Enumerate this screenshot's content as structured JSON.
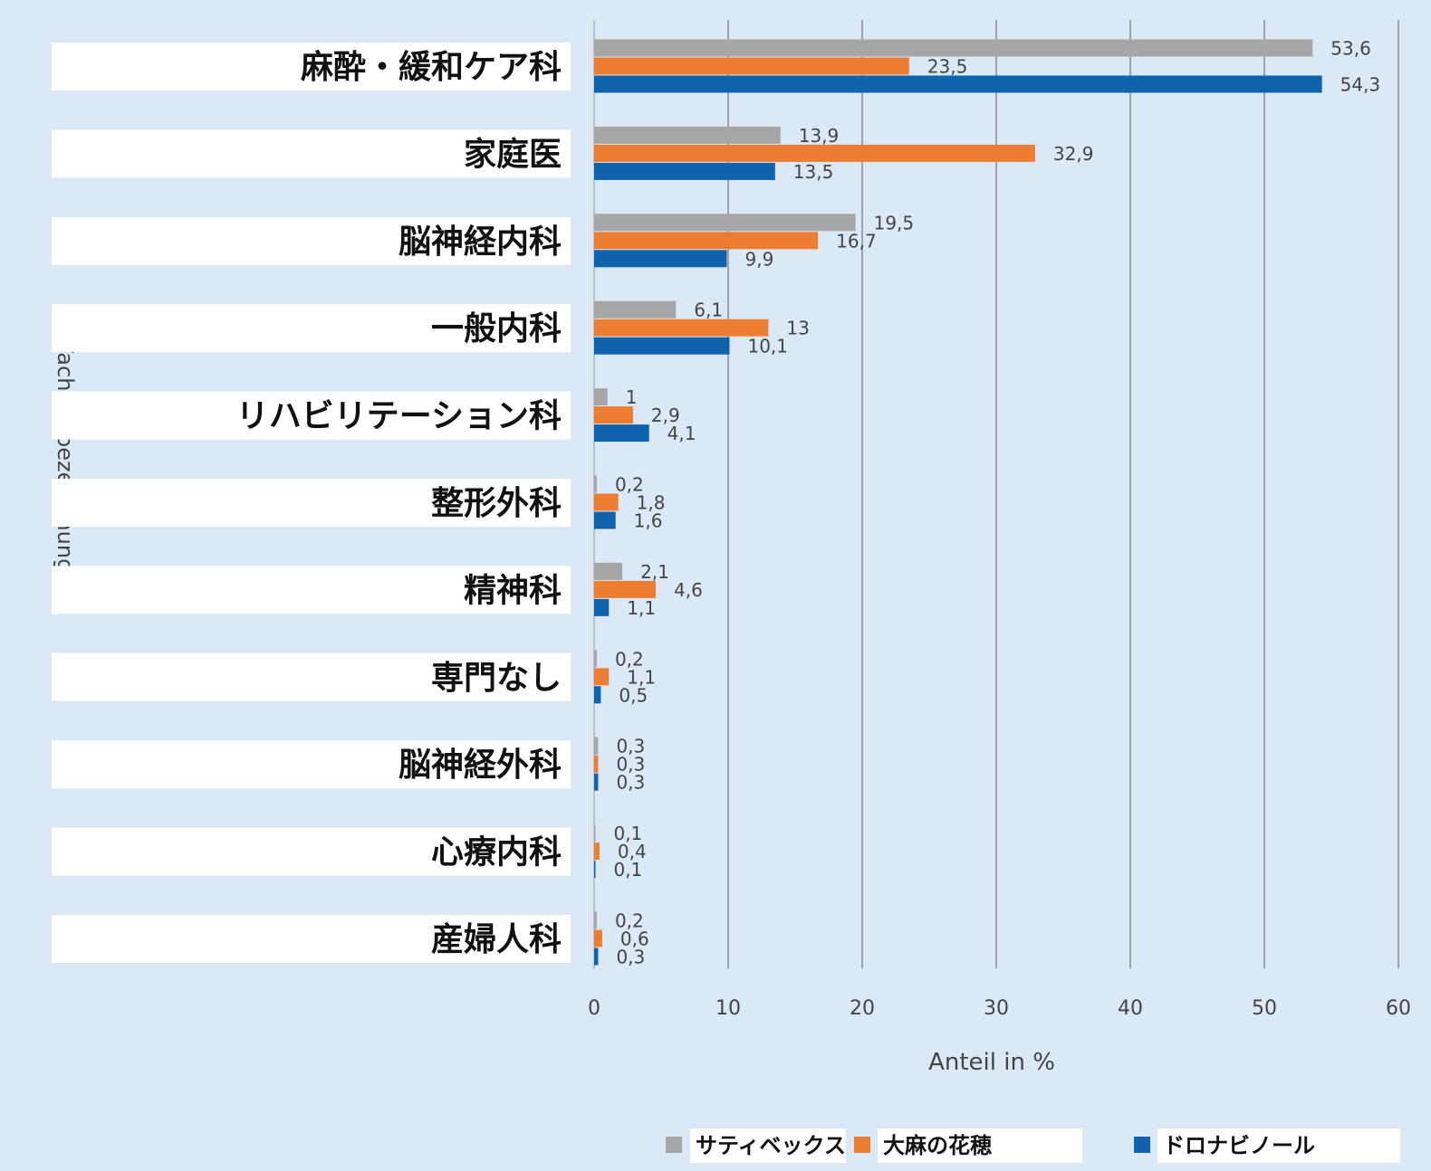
{
  "chart_data": {
    "type": "bar",
    "orientation": "horizontal",
    "title": "",
    "xlabel": "Anteil in %",
    "ylabel": "Facharztbezeichnung",
    "xlim": [
      0,
      60
    ],
    "xticks": [
      0,
      10,
      20,
      30,
      40,
      50,
      60
    ],
    "grid": "vertical",
    "legend_position": "bottom",
    "categories": [
      "麻酔・緩和ケア科",
      "家庭医",
      "脳神経内科",
      "一般内科",
      "リハビリテーション科",
      "整形外科",
      "精神科",
      "専門なし",
      "脳神経外科",
      "心療内科",
      "産婦人科"
    ],
    "series": [
      {
        "name": "サティベックス",
        "color": "#a6a6a6",
        "values": [
          53.6,
          13.9,
          19.5,
          6.1,
          1,
          0.2,
          2.1,
          0.2,
          0.3,
          0.1,
          0.2
        ],
        "labels": [
          "53,6",
          "13,9",
          "19,5",
          "6,1",
          "1",
          "0,2",
          "2,1",
          "0,2",
          "0,3",
          "0,1",
          "0,2"
        ]
      },
      {
        "name": "大麻の花穂",
        "color": "#ed7d31",
        "values": [
          23.5,
          32.9,
          16.7,
          13,
          2.9,
          1.8,
          4.6,
          1.1,
          0.3,
          0.4,
          0.6
        ],
        "labels": [
          "23,5",
          "32,9",
          "16,7",
          "13",
          "2,9",
          "1,8",
          "4,6",
          "1,1",
          "0,3",
          "0,4",
          "0,6"
        ]
      },
      {
        "name": "ドロナビノール",
        "color": "#0f62ac",
        "values": [
          54.3,
          13.5,
          9.9,
          10.1,
          4.1,
          1.6,
          1.1,
          0.5,
          0.3,
          0.1,
          0.3
        ],
        "labels": [
          "54,3",
          "13,5",
          "9,9",
          "10,1",
          "4,1",
          "1,6",
          "1,1",
          "0,5",
          "0,3",
          "0,1",
          "0,3"
        ]
      }
    ]
  }
}
